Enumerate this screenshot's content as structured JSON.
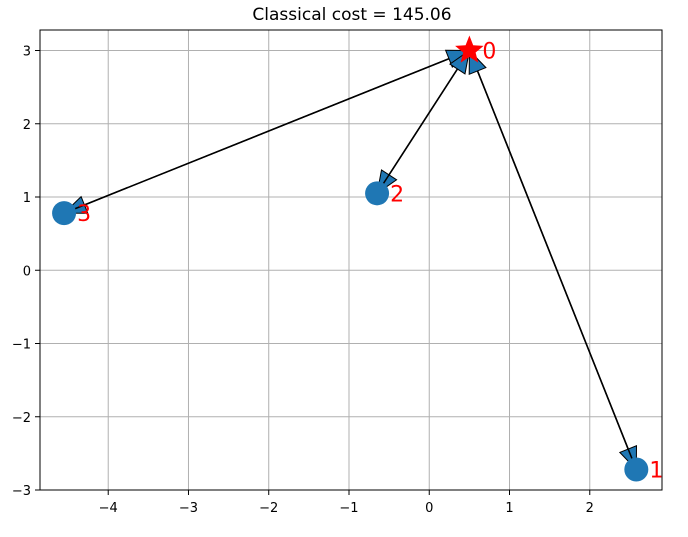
{
  "chart_data": {
    "type": "scatter",
    "title": "Classical cost = 145.06",
    "xlabel": "",
    "ylabel": "",
    "xlim": [
      -4.85,
      2.9
    ],
    "ylim": [
      -3.0,
      3.28
    ],
    "xticks": [
      -4,
      -3,
      -2,
      -1,
      0,
      1,
      2
    ],
    "yticks": [
      -3,
      -2,
      -1,
      0,
      1,
      2,
      3
    ],
    "xtick_labels": [
      "−4",
      "−3",
      "−2",
      "−1",
      "0",
      "1",
      "2"
    ],
    "ytick_labels": [
      "−3",
      "−2",
      "−1",
      "0",
      "1",
      "2",
      "3"
    ],
    "grid": true,
    "nodes": [
      {
        "label": "0",
        "x": 0.5,
        "y": 3.0,
        "marker": "star",
        "color": "#ff0000"
      },
      {
        "label": "1",
        "x": 2.58,
        "y": -2.72,
        "marker": "circle",
        "color": "#1f77b4"
      },
      {
        "label": "2",
        "x": -0.65,
        "y": 1.05,
        "marker": "circle",
        "color": "#1f77b4"
      },
      {
        "label": "3",
        "x": -4.55,
        "y": 0.78,
        "marker": "circle",
        "color": "#1f77b4"
      }
    ],
    "edges": [
      {
        "from": "0",
        "to": "1"
      },
      {
        "from": "0",
        "to": "2"
      },
      {
        "from": "0",
        "to": "3"
      },
      {
        "from": "3",
        "to": "0"
      },
      {
        "from": "1",
        "to": "0"
      },
      {
        "from": "2",
        "to": "0"
      }
    ],
    "colors": {
      "node": "#1f77b4",
      "depot": "#ff0000",
      "label": "#ff0000",
      "arrow_fill": "#1f77b4",
      "arrow_line": "#000000",
      "grid": "#b0b0b0"
    }
  }
}
